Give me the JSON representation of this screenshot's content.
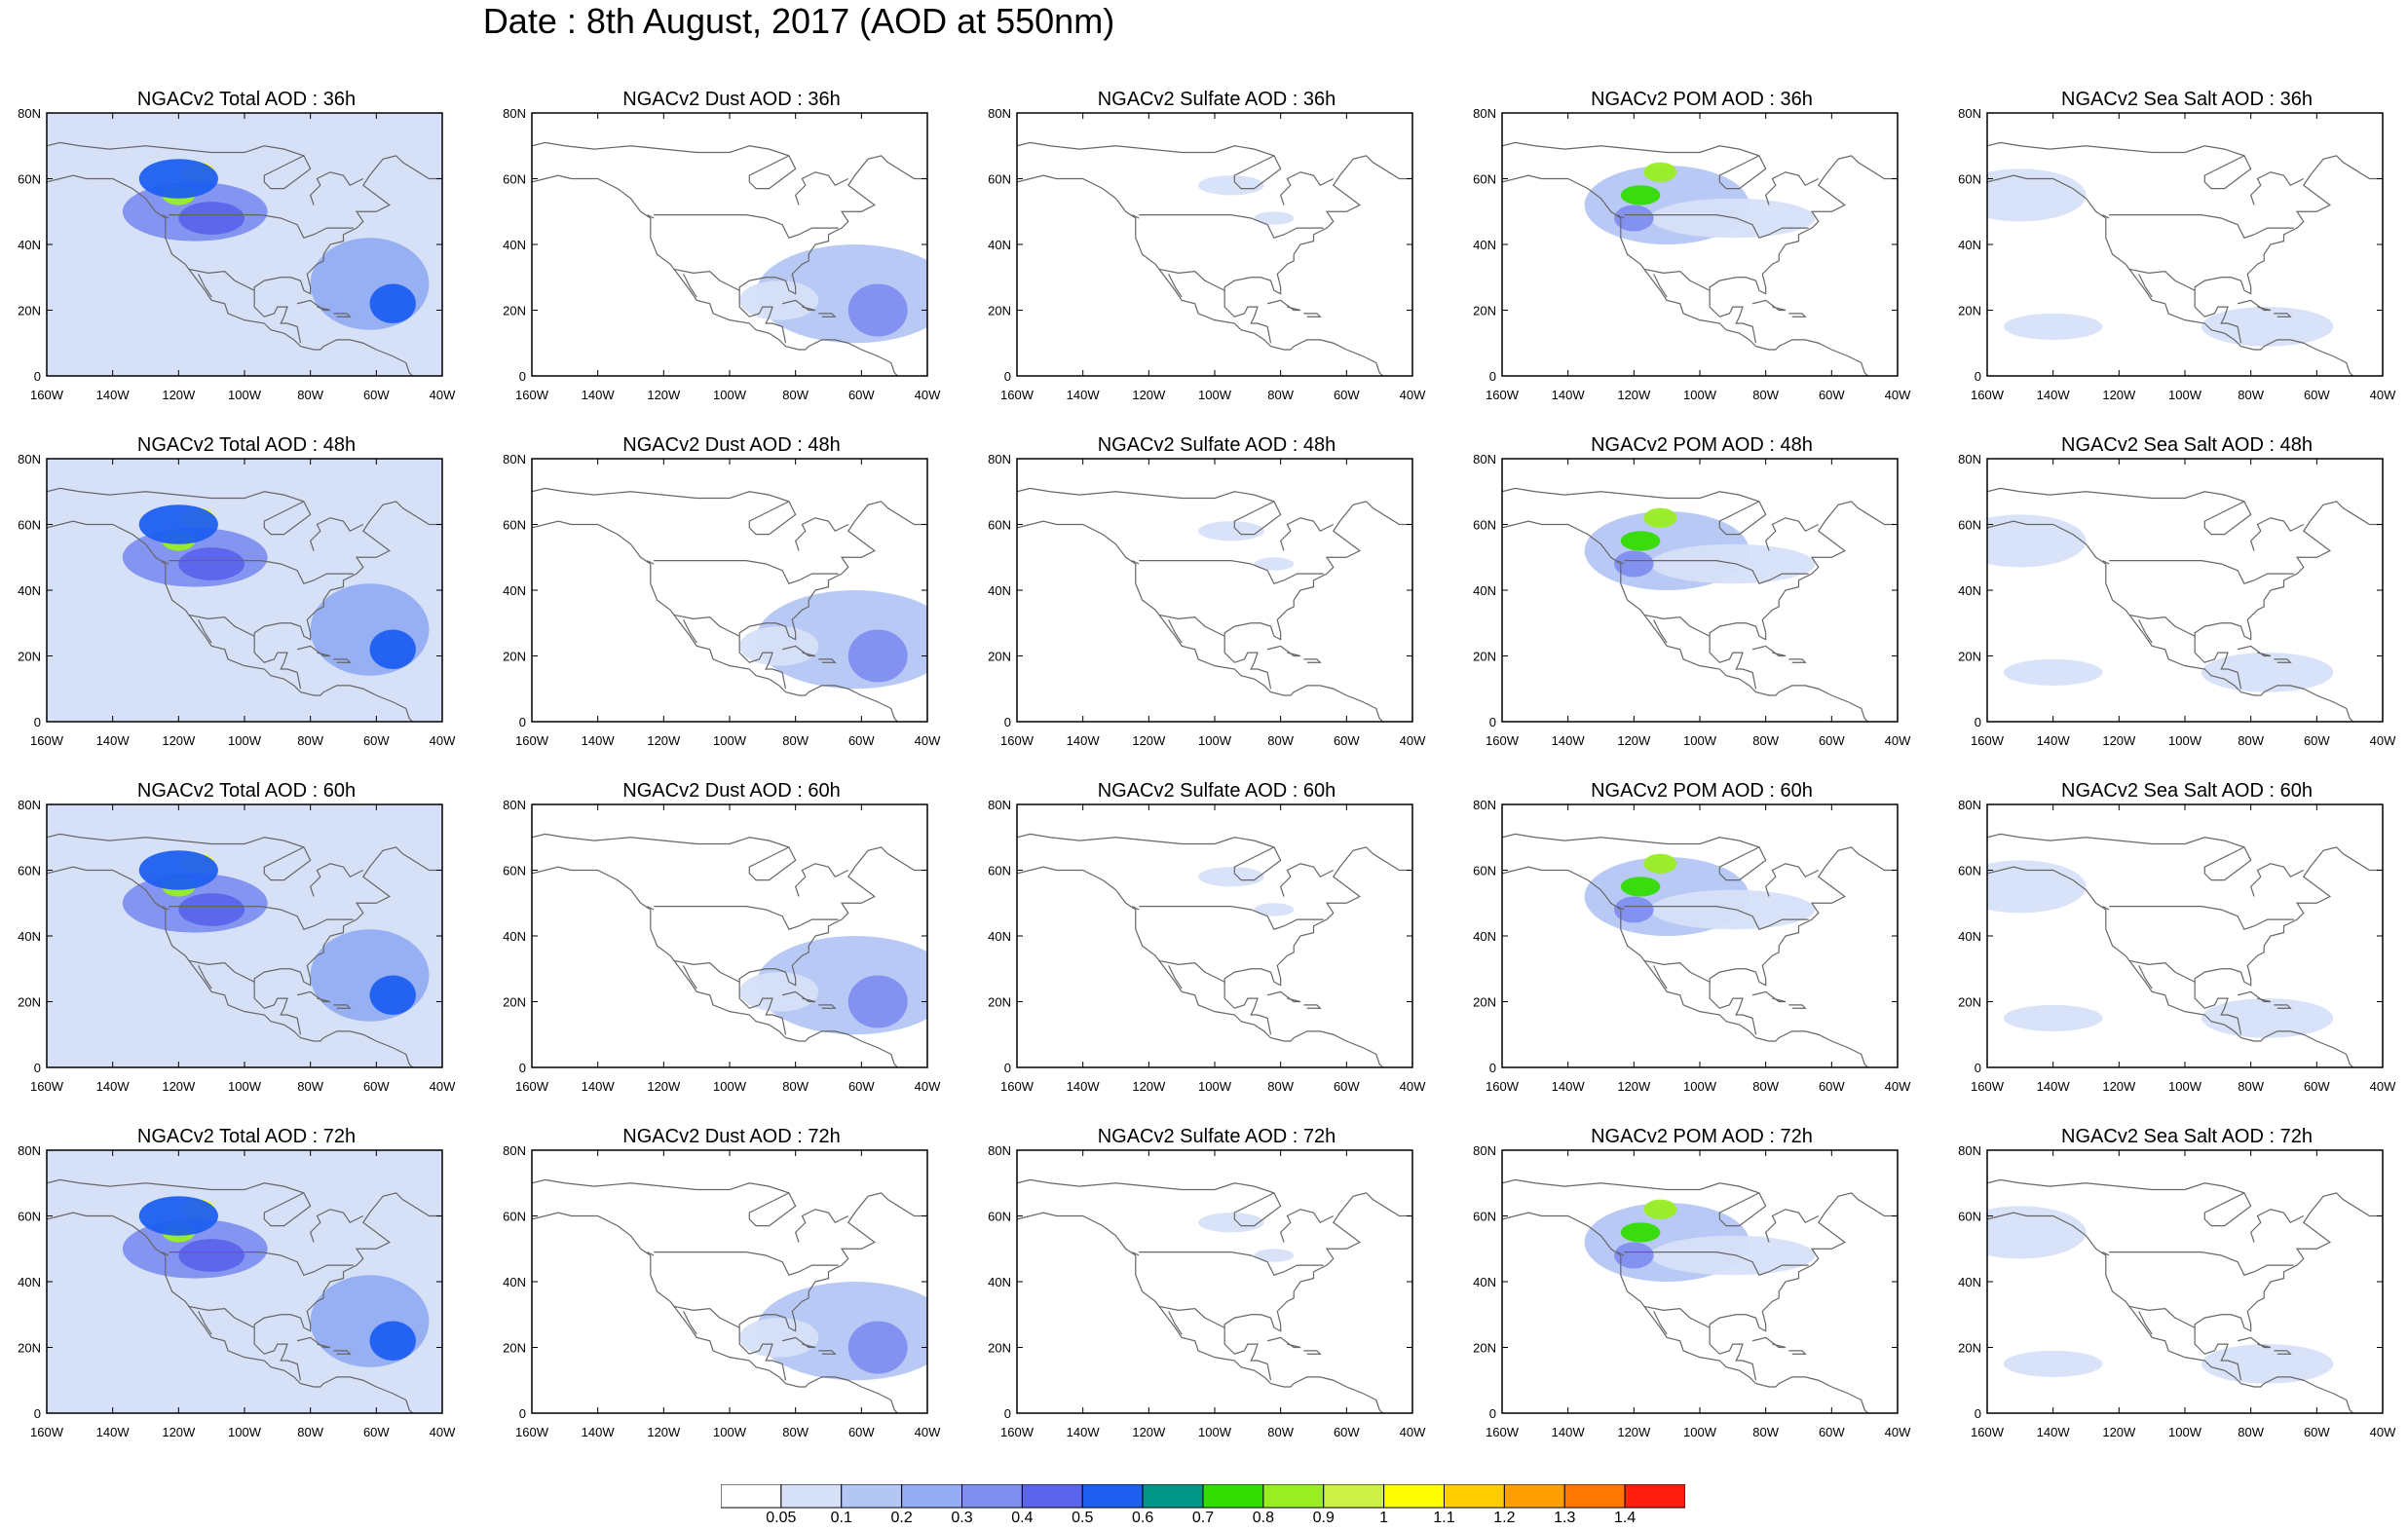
{
  "title": "Date : 8th August, 2017 (AOD at 550nm)",
  "lat_ticks": [
    "80N",
    "60N",
    "40N",
    "20N",
    "0"
  ],
  "lon_ticks": [
    "160W",
    "140W",
    "120W",
    "100W",
    "80W",
    "60W",
    "40W"
  ],
  "panels": [
    [
      "NGACv2 Total AOD : 36h",
      "NGACv2 Dust AOD : 36h",
      "NGACv2 Sulfate AOD : 36h",
      "NGACv2 POM AOD : 36h",
      "NGACv2 Sea Salt AOD : 36h"
    ],
    [
      "NGACv2 Total AOD : 48h",
      "NGACv2 Dust AOD : 48h",
      "NGACv2 Sulfate AOD : 48h",
      "NGACv2 POM AOD : 48h",
      "NGACv2 Sea Salt AOD : 48h"
    ],
    [
      "NGACv2 Total AOD : 60h",
      "NGACv2 Dust AOD : 60h",
      "NGACv2 Sulfate AOD : 60h",
      "NGACv2 POM AOD : 60h",
      "NGACv2 Sea Salt AOD : 60h"
    ],
    [
      "NGACv2 Total AOD : 72h",
      "NGACv2 Dust AOD : 72h",
      "NGACv2 Sulfate AOD : 72h",
      "NGACv2 POM AOD : 72h",
      "NGACv2 Sea Salt  AOD : 72h"
    ]
  ],
  "colorbar": {
    "labels": [
      "0.05",
      "0.1",
      "0.2",
      "0.3",
      "0.4",
      "0.5",
      "0.6",
      "0.7",
      "0.8",
      "0.9",
      "1",
      "1.1",
      "1.2",
      "1.3",
      "1.4"
    ],
    "colors": [
      "#ffffff",
      "#d6e0f8",
      "#b4c6f4",
      "#93acf2",
      "#7f8ff0",
      "#5b64ea",
      "#1e5ff0",
      "#009688",
      "#33dd00",
      "#99ee22",
      "#ccf044",
      "#ffff00",
      "#ffcc00",
      "#ffa000",
      "#ff7700",
      "#ff2010"
    ]
  },
  "colors": {
    "coast": "#666666",
    "frame": "#000000"
  }
}
